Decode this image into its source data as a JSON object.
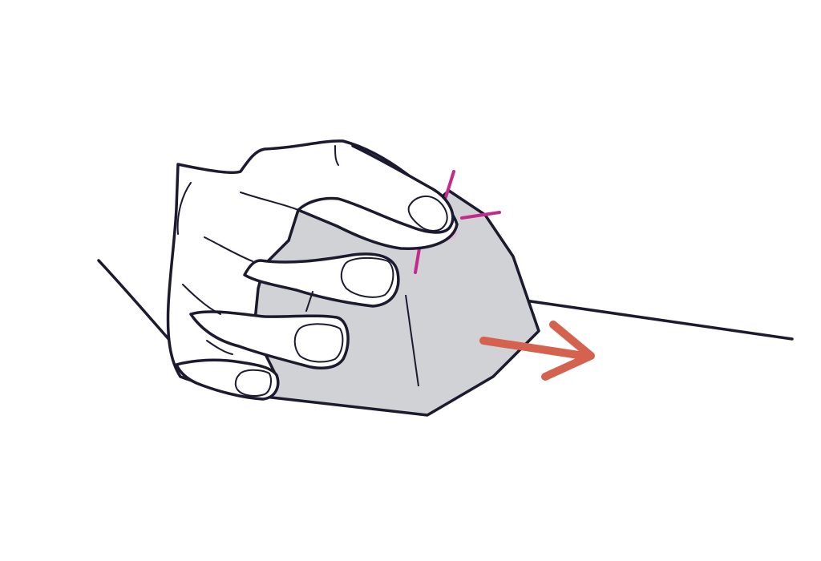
{
  "colors": {
    "background": "#ffffff",
    "outline": "#1c1a2e",
    "mouse_fill": "#d1d2d5",
    "skin": "#ffffff",
    "click_accent": "#c42a8c",
    "click_glow": "#eab7d8",
    "arrow": "#d4624f"
  },
  "figure": {
    "subject": "hand-gripping-vertical-mouse",
    "icons": [
      "vertical-mouse-icon",
      "click-indicator-icon",
      "move-right-arrow-icon"
    ]
  }
}
